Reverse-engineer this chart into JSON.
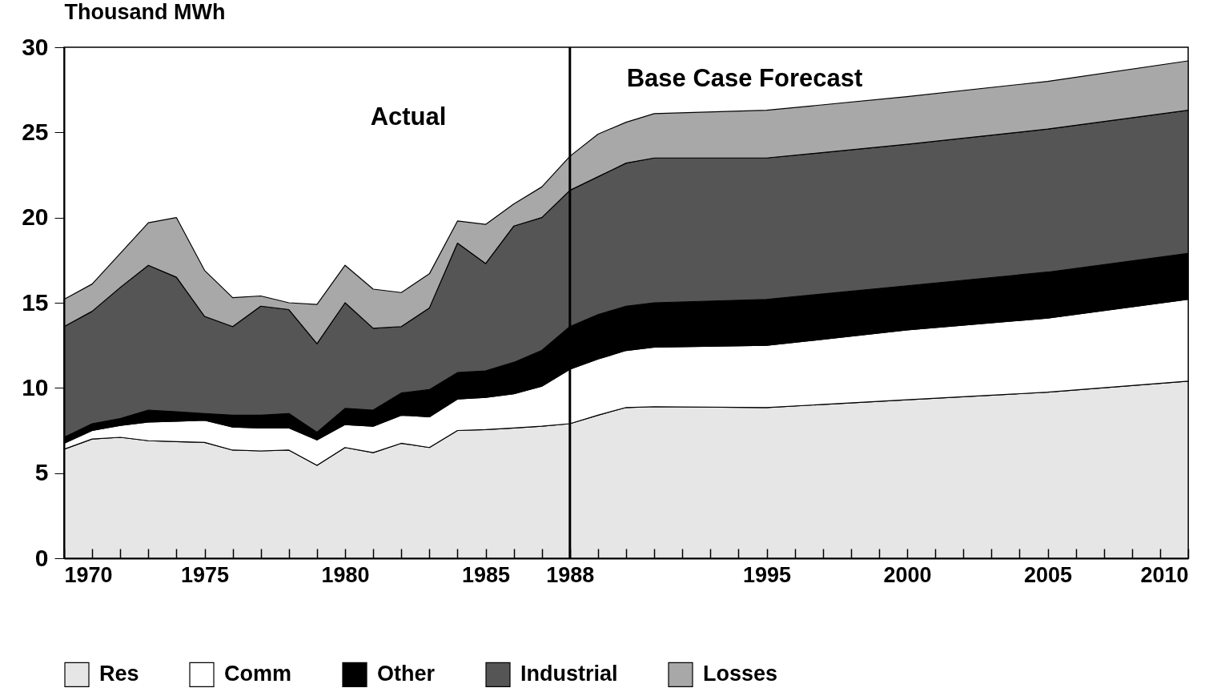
{
  "chart_data": {
    "type": "area",
    "stacked": true,
    "ylabel": "Thousand MWh",
    "x": [
      1970,
      1971,
      1972,
      1973,
      1974,
      1975,
      1976,
      1977,
      1978,
      1979,
      1980,
      1981,
      1982,
      1983,
      1984,
      1985,
      1986,
      1987,
      1988,
      1989,
      1990,
      1991,
      1995,
      2000,
      2005,
      2010
    ],
    "series": [
      {
        "name": "Res",
        "color": "#e6e6e6",
        "values": [
          6.4,
          7.0,
          7.1,
          6.9,
          6.85,
          6.8,
          6.35,
          6.3,
          6.35,
          5.45,
          6.5,
          6.2,
          6.75,
          6.5,
          7.5,
          7.55,
          7.65,
          7.75,
          7.9,
          8.4,
          8.85,
          8.9,
          8.85,
          9.3,
          9.75,
          10.4
        ]
      },
      {
        "name": "Comm",
        "color": "#ffffff",
        "values": [
          0.35,
          0.5,
          0.7,
          1.1,
          1.2,
          1.3,
          1.35,
          1.35,
          1.3,
          1.5,
          1.35,
          1.55,
          1.65,
          1.8,
          1.85,
          1.9,
          2.0,
          2.35,
          3.2,
          3.3,
          3.35,
          3.5,
          3.65,
          4.1,
          4.35,
          4.8
        ]
      },
      {
        "name": "Other",
        "color": "#000000",
        "values": [
          0.35,
          0.4,
          0.4,
          0.7,
          0.55,
          0.4,
          0.7,
          0.75,
          0.85,
          0.45,
          0.95,
          0.95,
          1.3,
          1.6,
          1.55,
          1.55,
          1.85,
          2.1,
          2.5,
          2.6,
          2.6,
          2.6,
          2.7,
          2.6,
          2.7,
          2.7
        ]
      },
      {
        "name": "Industrial",
        "color": "#555555",
        "values": [
          6.5,
          6.6,
          7.7,
          8.5,
          7.9,
          5.7,
          5.2,
          6.4,
          6.1,
          5.2,
          6.2,
          4.8,
          3.9,
          4.8,
          7.6,
          6.3,
          8.0,
          7.8,
          8.0,
          8.1,
          8.4,
          8.5,
          8.3,
          8.3,
          8.4,
          8.4
        ]
      },
      {
        "name": "Losses",
        "color": "#a8a8a8",
        "values": [
          1.6,
          1.6,
          2.0,
          2.5,
          3.5,
          2.7,
          1.7,
          0.6,
          0.4,
          2.3,
          2.2,
          2.3,
          2.0,
          2.0,
          1.3,
          2.3,
          1.3,
          1.8,
          2.0,
          2.5,
          2.4,
          2.6,
          2.8,
          2.8,
          2.8,
          2.9
        ]
      }
    ],
    "xlim": [
      1970,
      2010
    ],
    "xticks": [
      1970,
      {
        "value": 1971,
        "label": null
      },
      {
        "value": 1972,
        "label": null
      },
      {
        "value": 1973,
        "label": null
      },
      {
        "value": 1974,
        "label": null
      },
      1975,
      {
        "value": 1976,
        "label": null
      },
      {
        "value": 1977,
        "label": null
      },
      {
        "value": 1978,
        "label": null
      },
      {
        "value": 1979,
        "label": null
      },
      1980,
      {
        "value": 1981,
        "label": null
      },
      {
        "value": 1982,
        "label": null
      },
      {
        "value": 1983,
        "label": null
      },
      {
        "value": 1984,
        "label": null
      },
      1985,
      {
        "value": 1986,
        "label": null
      },
      {
        "value": 1987,
        "label": null
      },
      1988,
      {
        "value": 1989,
        "label": null
      },
      {
        "value": 1990,
        "label": null
      },
      {
        "value": 1991,
        "label": null
      },
      {
        "value": 1992,
        "label": null
      },
      {
        "value": 1993,
        "label": null
      },
      {
        "value": 1994,
        "label": null
      },
      1995,
      {
        "value": 1996,
        "label": null
      },
      {
        "value": 1997,
        "label": null
      },
      {
        "value": 1998,
        "label": null
      },
      {
        "value": 1999,
        "label": null
      },
      2000,
      {
        "value": 2001,
        "label": null
      },
      {
        "value": 2002,
        "label": null
      },
      {
        "value": 2003,
        "label": null
      },
      {
        "value": 2004,
        "label": null
      },
      2005,
      {
        "value": 2006,
        "label": null
      },
      {
        "value": 2007,
        "label": null
      },
      {
        "value": 2008,
        "label": null
      },
      {
        "value": 2009,
        "label": null
      },
      2010
    ],
    "ylim": [
      0,
      30
    ],
    "yticks": [
      0,
      5,
      10,
      15,
      20,
      25,
      30
    ],
    "ref_lines": [
      {
        "axis": "x",
        "value": 1988,
        "color": "#000000"
      }
    ],
    "annotations": [
      "Actual",
      "Base Case Forecast"
    ],
    "legend": "bottom",
    "grid": false
  }
}
